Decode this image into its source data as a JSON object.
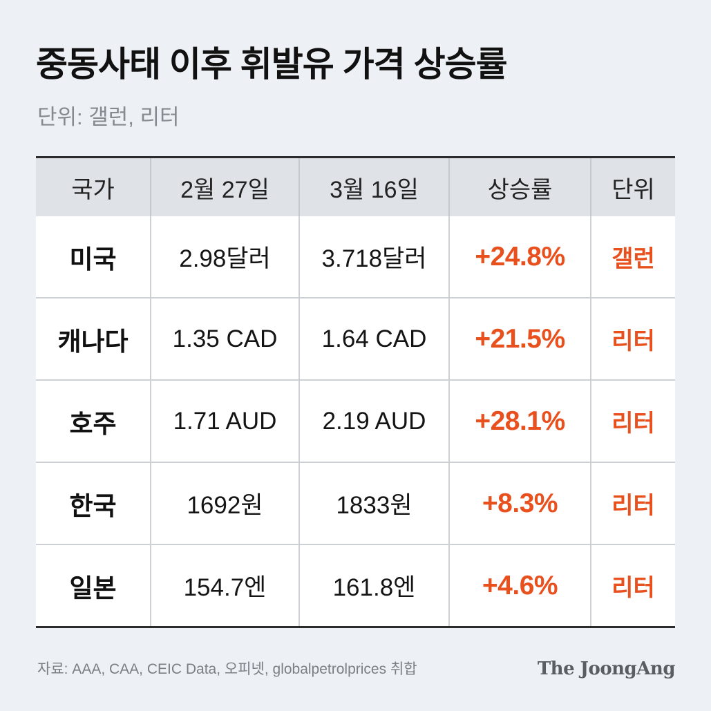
{
  "chart_data": {
    "type": "table",
    "title": "중동사태 이후 휘발유 가격 상승률",
    "subtitle": "단위: 갤런, 리터",
    "columns": [
      "국가",
      "2월 27일",
      "3월 16일",
      "상승률",
      "단위"
    ],
    "rows": [
      [
        "미국",
        "2.98달러",
        "3.718달러",
        "+24.8%",
        "갤런"
      ],
      [
        "캐나다",
        "1.35 CAD",
        "1.64 CAD",
        "+21.5%",
        "리터"
      ],
      [
        "호주",
        "1.71 AUD",
        "2.19 AUD",
        "+28.1%",
        "리터"
      ],
      [
        "한국",
        "1692원",
        "1833원",
        "+8.3%",
        "리터"
      ],
      [
        "일본",
        "154.7엔",
        "161.8엔",
        "+4.6%",
        "리터"
      ]
    ]
  },
  "footer": {
    "source": "자료: AAA, CAA, CEIC Data, 오피넷, globalpetrolprices 취합",
    "logo": "The JoongAng"
  },
  "colors": {
    "background": "#edf0f4",
    "header_background": "#dfe3e8",
    "accent": "#e8501e",
    "text": "#111111",
    "muted": "#858a91"
  }
}
